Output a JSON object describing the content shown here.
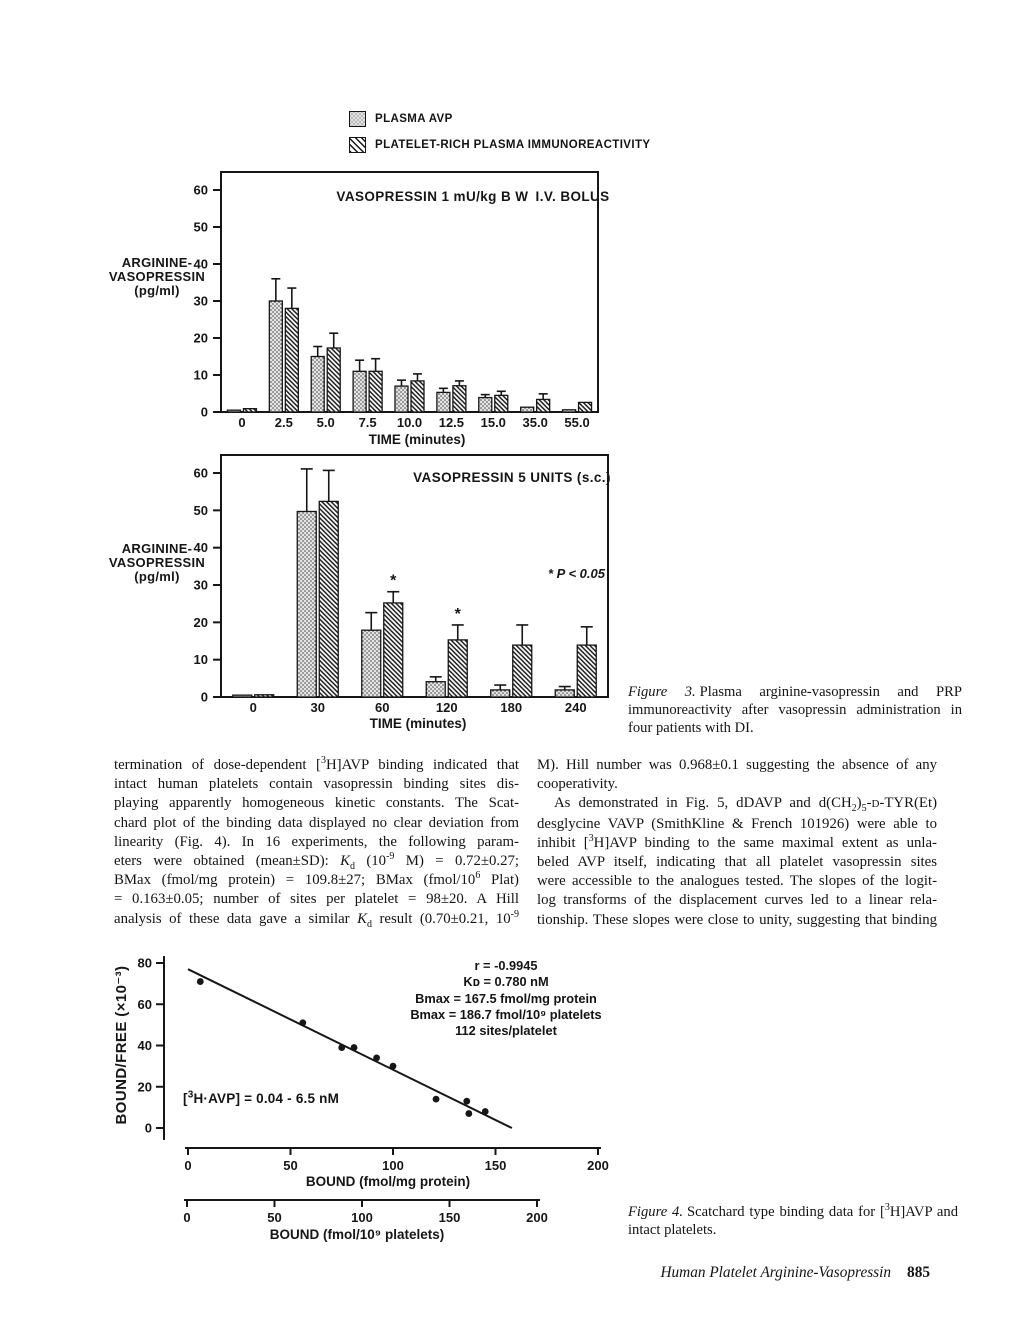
{
  "legend": {
    "items": [
      {
        "label": "PLASMA AVP",
        "pattern": "stipple"
      },
      {
        "label": "PLATELET-RICH PLASMA IMMUNOREACTIVITY",
        "pattern": "hatch"
      }
    ]
  },
  "chart_data": [
    {
      "type": "bar",
      "title": "VASOPRESSIN 1 mU/kg B W I.V. BOLUS",
      "ylabel_lines": [
        "ARGININE-",
        "VASOPRESSIN",
        "(pg/ml)"
      ],
      "xlabel": "TIME (minutes)",
      "ylim": [
        0,
        60
      ],
      "yticks": [
        0,
        10,
        20,
        30,
        40,
        50,
        60
      ],
      "categories": [
        "0",
        "2.5",
        "5.0",
        "7.5",
        "10.0",
        "12.5",
        "15.0",
        "35.0",
        "55.0"
      ],
      "series": [
        {
          "name": "PLASMA AVP",
          "pattern": "stipple",
          "values": [
            0.5,
            30,
            15,
            11,
            7,
            5.3,
            3.9,
            1.3,
            0.6
          ],
          "errors": [
            0,
            6,
            2.7,
            3,
            1.6,
            1.1,
            0.8,
            0,
            0
          ]
        },
        {
          "name": "PLATELET-RICH PLASMA IMMUNOREACTIVITY",
          "pattern": "hatch",
          "values": [
            0.9,
            28,
            17.3,
            11,
            8.4,
            7.1,
            4.5,
            3.4,
            2.6
          ],
          "errors": [
            0,
            5.5,
            4,
            3.4,
            1.9,
            1.3,
            1.1,
            1.5,
            0
          ]
        }
      ]
    },
    {
      "type": "bar",
      "title": "VASOPRESSIN 5 UNITS (s.c.)",
      "annotation": "* P < 0.05",
      "ylabel_lines": [
        "ARGININE-",
        "VASOPRESSIN",
        "(pg/ml)"
      ],
      "xlabel": "TIME (minutes)",
      "ylim": [
        0,
        60
      ],
      "yticks": [
        0,
        10,
        20,
        30,
        40,
        50,
        60
      ],
      "categories": [
        "0",
        "30",
        "60",
        "120",
        "180",
        "240"
      ],
      "series": [
        {
          "name": "PLASMA AVP",
          "pattern": "stipple",
          "values": [
            0.5,
            49.7,
            17.9,
            4.1,
            1.9,
            1.9
          ],
          "errors": [
            0,
            11.4,
            4.7,
            1.3,
            1.3,
            0.9
          ]
        },
        {
          "name": "PLATELET-RICH PLASMA IMMUNOREACTIVITY",
          "pattern": "hatch",
          "values": [
            0.6,
            52.4,
            25.2,
            15.3,
            13.9,
            13.9
          ],
          "errors": [
            0,
            8.3,
            3,
            4,
            5.4,
            4.9
          ],
          "stars": [
            false,
            false,
            true,
            true,
            false,
            false
          ]
        }
      ]
    },
    {
      "type": "scatter",
      "ylabel": "BOUND/FREE (×10⁻³)",
      "xlabel": "BOUND (fmol/mg protein)",
      "xlabel2": "BOUND (fmol/10⁹ platelets)",
      "xlim": [
        0,
        200
      ],
      "ylim": [
        0,
        80
      ],
      "xticks": [
        0,
        50,
        100,
        150,
        200
      ],
      "yticks": [
        0,
        20,
        40,
        60,
        80
      ],
      "points": [
        [
          6,
          71
        ],
        [
          56,
          51
        ],
        [
          75,
          39
        ],
        [
          81,
          39
        ],
        [
          92,
          34
        ],
        [
          100,
          30
        ],
        [
          121,
          14
        ],
        [
          136,
          13
        ],
        [
          137,
          7
        ],
        [
          145,
          8
        ]
      ],
      "fit_line": {
        "x1": 0,
        "y1": 77,
        "x2": 158,
        "y2": 0
      },
      "stats": [
        "r = -0.9945",
        "Kᴅ =  0.780 nM",
        "Bmax =  167.5 fmol/mg protein",
        "Bmax =  186.7 fmol/10⁹ platelets",
        "112 sites/platelet"
      ],
      "range_note": "[<sup>3</sup>H·AVP] = 0.04 - 6.5 nM"
    }
  ],
  "captions": {
    "figure3": {
      "label": "Figure 3.",
      "text": "Plasma arginine-vasopressin and PRP immunoreactivity after vasopressin administration in four patients with DI."
    },
    "figure4": {
      "label": "Figure 4.",
      "text": "Scatchard type binding data for [<sup>3</sup>H]AVP and intact platelets."
    }
  },
  "body": {
    "left_lines": [
      "termination of dose-dependent [<sup>3</sup>H]AVP binding indicated that",
      "intact human platelets contain vasopressin binding sites dis-",
      "playing apparently homogeneous kinetic constants. The Scat-",
      "chard plot of the binding data displayed no clear deviation from",
      "linearity (Fig. 4). In 16 experiments, the following param-",
      "eters were obtained (mean±SD): <i>K</i><sub>d</sub> (10<sup>-9</sup> M) = 0.72±0.27;",
      "BMax (fmol/mg protein) = 109.8±27; BMax (fmol/10<sup>6</sup> Plat)",
      "= 0.163±0.05; number of sites per platelet = 98±20. A Hill",
      "analysis of these data gave a similar <i>K</i><sub>d</sub> result (0.70±0.21, 10<sup>-9</sup>"
    ],
    "right_lines": [
      "M). Hill number was 0.968±0.1 suggesting the absence of any",
      "cooperativity.",
      "<span class='ind'></span>As demonstrated in Fig. 5, dDAVP and d(CH<sub>2</sub>)<sub>5</sub>-<span class='sc'>D</span>-TYR(Et)",
      "desglycine VAVP (SmithKline &amp; French 101926) were able to",
      "inhibit [<sup>3</sup>H]AVP binding to the same maximal extent as unla-",
      "beled AVP itself, indicating that all platelet vasopressin sites",
      "were accessible to the analogues tested. The slopes of the logit-",
      "log transforms of the displacement curves led to a linear rela-",
      "tionship. These slopes were close to unity, suggesting that binding"
    ]
  },
  "footer": {
    "title": "Human Platelet Arginine-Vasopressin",
    "page": "885"
  }
}
